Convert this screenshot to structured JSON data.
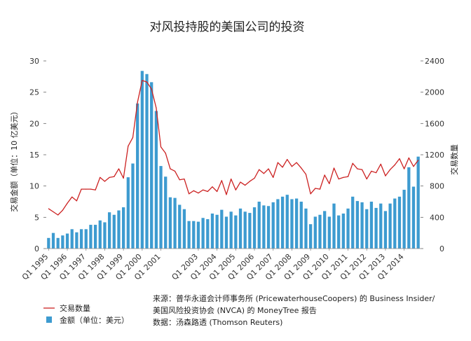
{
  "chart_data": {
    "type": "bar+line",
    "title": "对风投持股的美国公司的投资",
    "x": [
      "Q1 1995",
      "Q2 1995",
      "Q3 1995",
      "Q4 1995",
      "Q1 1996",
      "Q2 1996",
      "Q3 1996",
      "Q4 1996",
      "Q1 1997",
      "Q2 1997",
      "Q3 1997",
      "Q4 1997",
      "Q1 1998",
      "Q2 1998",
      "Q3 1998",
      "Q4 1998",
      "Q1 1999",
      "Q2 1999",
      "Q3 1999",
      "Q4 1999",
      "Q1 2000",
      "Q2 2000",
      "Q3 2000",
      "Q4 2000",
      "Q1 2001",
      "Q2 2001",
      "Q3 2001",
      "Q4 2001",
      "Q1 2002",
      "Q2 2002",
      "Q3 2002",
      "Q4 2002",
      "Q1 2003",
      "Q2 2003",
      "Q3 2003",
      "Q4 2003",
      "Q1 2004",
      "Q2 2004",
      "Q3 2004",
      "Q4 2004",
      "Q1 2005",
      "Q2 2005",
      "Q3 2005",
      "Q4 2005",
      "Q1 2006",
      "Q2 2006",
      "Q3 2006",
      "Q4 2006",
      "Q1 2007",
      "Q2 2007",
      "Q3 2007",
      "Q4 2007",
      "Q1 2008",
      "Q2 2008",
      "Q3 2008",
      "Q4 2008",
      "Q1 2009",
      "Q2 2009",
      "Q3 2009",
      "Q4 2009",
      "Q1 2010",
      "Q2 2010",
      "Q3 2010",
      "Q4 2010",
      "Q1 2011",
      "Q2 2011",
      "Q3 2011",
      "Q4 2011",
      "Q1 2012",
      "Q2 2012",
      "Q3 2012",
      "Q4 2012",
      "Q1 2013",
      "Q2 2013",
      "Q3 2013",
      "Q4 2013",
      "Q1 2014",
      "Q2 2014",
      "Q3 2014",
      "Q4 2014"
    ],
    "x_tick_labels": [
      "Q1 1995",
      "Q1 1996",
      "Q1 1997",
      "Q1 1998",
      "Q1 1999",
      "Q1 2000",
      "Q1 2001",
      "Q1 2003",
      "Q1 2004",
      "Q1 2005",
      "Q1 2006",
      "Q1 2007",
      "Q1 2008",
      "Q1 2009",
      "Q1 2010",
      "Q1 2011",
      "Q1 2012",
      "Q1 2013",
      "Q1 2014"
    ],
    "series": [
      {
        "name": "金额（单位：美元）",
        "type": "bar",
        "axis": "left",
        "color": "#3d9bd0",
        "values": [
          1.7,
          2.5,
          1.7,
          2.1,
          2.4,
          3.1,
          2.6,
          3.1,
          3.1,
          3.8,
          3.8,
          4.5,
          4.2,
          5.8,
          5.4,
          6.1,
          6.6,
          11.4,
          13.6,
          23.2,
          28.4,
          27.9,
          26.6,
          22.0,
          13.2,
          11.5,
          8.2,
          8.1,
          7.0,
          6.3,
          4.4,
          4.4,
          4.3,
          4.9,
          4.7,
          5.6,
          5.4,
          6.2,
          5.1,
          5.9,
          5.3,
          6.4,
          5.9,
          5.7,
          6.6,
          7.5,
          6.9,
          6.8,
          7.4,
          7.9,
          8.3,
          8.6,
          7.9,
          8.0,
          7.5,
          6.4,
          3.9,
          5.1,
          5.4,
          6.0,
          5.1,
          7.2,
          5.3,
          5.6,
          6.4,
          8.3,
          7.6,
          7.4,
          6.3,
          7.5,
          6.5,
          7.2,
          6.0,
          7.2,
          8.0,
          8.3,
          9.4,
          13.0,
          9.9,
          14.7
        ]
      },
      {
        "name": "交易数量",
        "type": "line",
        "axis": "right",
        "color": "#cc2222",
        "values": [
          510,
          470,
          430,
          490,
          580,
          660,
          610,
          760,
          760,
          760,
          750,
          910,
          860,
          910,
          920,
          1020,
          900,
          1310,
          1420,
          1870,
          2150,
          2130,
          2040,
          1800,
          1300,
          1220,
          1020,
          990,
          880,
          890,
          700,
          740,
          710,
          750,
          730,
          790,
          730,
          870,
          690,
          890,
          750,
          850,
          810,
          860,
          900,
          1010,
          960,
          1020,
          910,
          1100,
          1040,
          1140,
          1050,
          1100,
          1030,
          950,
          700,
          770,
          760,
          940,
          830,
          1030,
          890,
          910,
          920,
          1090,
          1020,
          1010,
          890,
          990,
          970,
          1080,
          930,
          1010,
          1070,
          1150,
          1020,
          1160,
          1050,
          1130
        ]
      }
    ],
    "ylim_left": [
      0,
      30
    ],
    "yticks_left": [
      0,
      5,
      10,
      15,
      20,
      25,
      30
    ],
    "ylabel_left": "交易金额（单位：10 亿美元）",
    "ylim_right": [
      0,
      2400
    ],
    "yticks_right": [
      0,
      400,
      800,
      1200,
      1600,
      2000,
      2400
    ],
    "ylabel_right": "交易数量",
    "grid": false,
    "legend": [
      "交易数量",
      "金额（单位：美元）"
    ],
    "legend_position": "bottom-left"
  },
  "source_lines": [
    "来源：普华永道会计师事务所 (PricewaterhouseCoopers) 的 Business Insider/",
    "美国风险投资协会 (NVCA) 的 MoneyTree 报告",
    "数据：汤森路透 (Thomson Reuters)"
  ]
}
